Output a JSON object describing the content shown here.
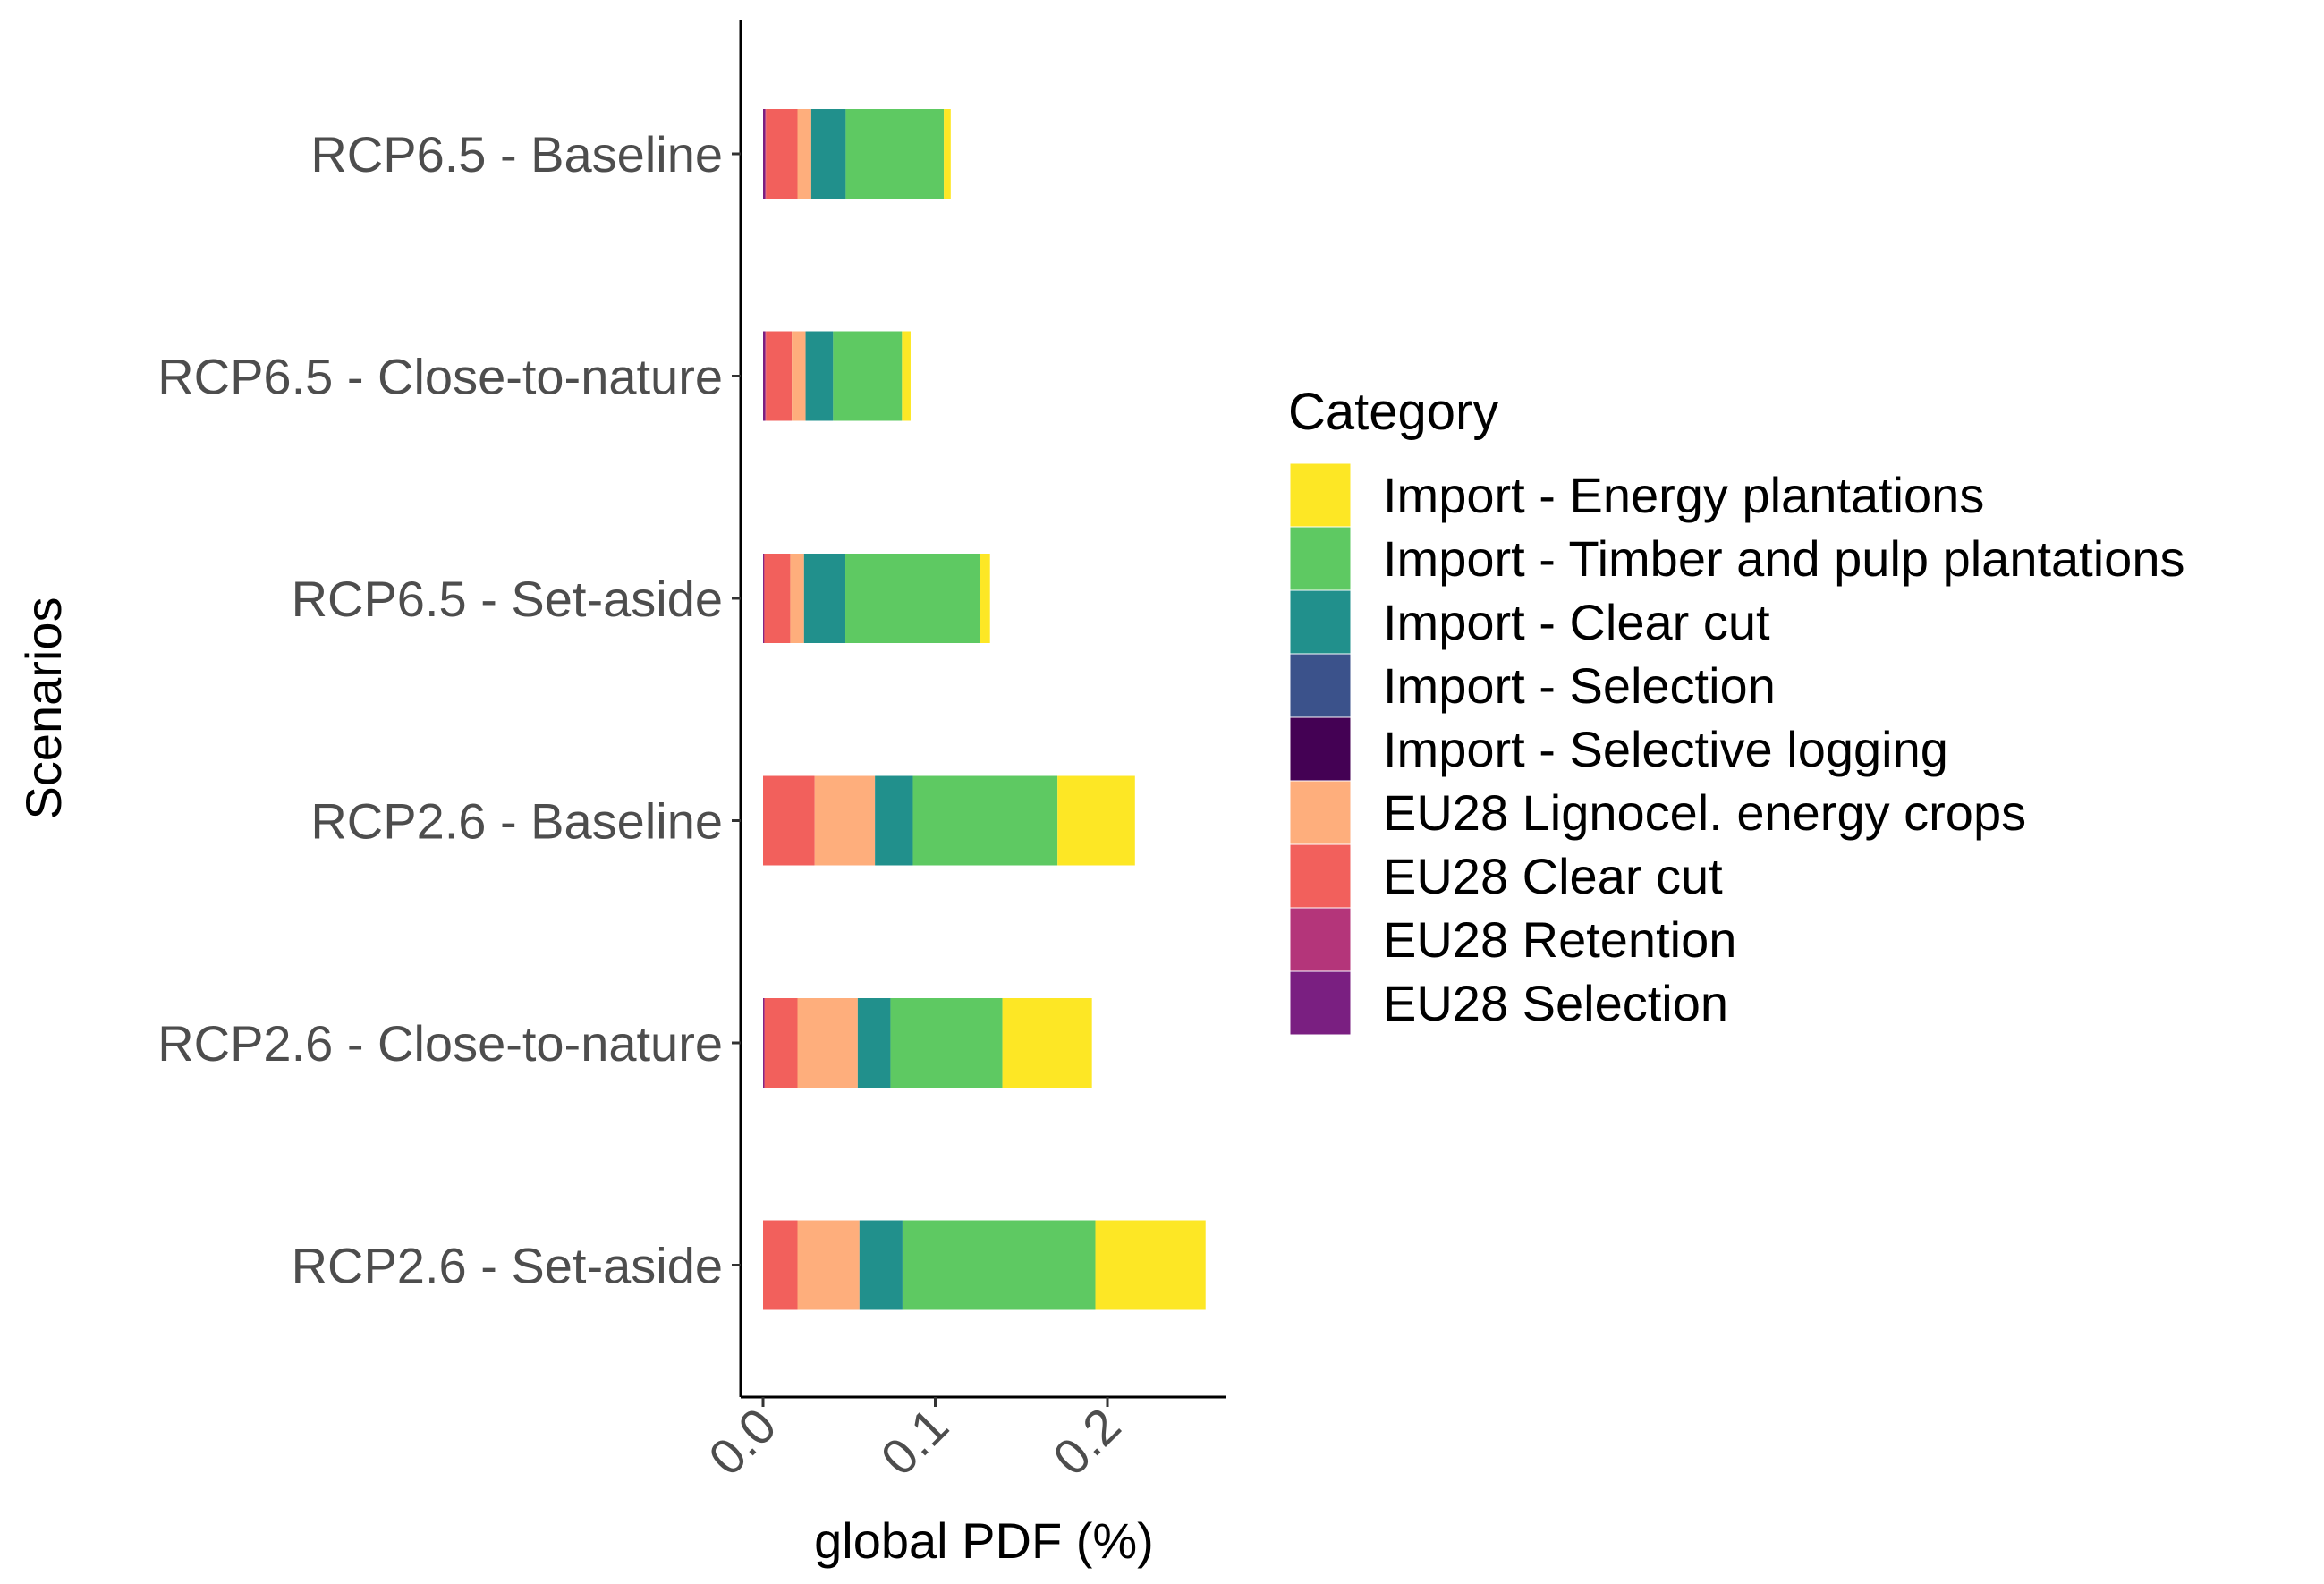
{
  "chart_data": {
    "type": "bar",
    "orientation": "horizontal",
    "stacked": true,
    "xlabel": "global PDF (%)",
    "ylabel": "Scenarios",
    "xlim": [
      -0.013,
      0.27
    ],
    "xticks": [
      0.0,
      0.1,
      0.2
    ],
    "xtick_labels": [
      "0.0",
      "0.1",
      "0.2"
    ],
    "grid": false,
    "legend": {
      "title": "Category",
      "position": "right"
    },
    "categories": [
      "RCP6.5 - Baseline",
      "RCP6.5 - Close-to-nature",
      "RCP6.5 - Set-aside",
      "RCP2.6 - Baseline",
      "RCP2.6 - Close-to-nature",
      "RCP2.6 - Set-aside"
    ],
    "series": [
      {
        "name": "EU28 Selection",
        "color": "#7A1F81",
        "values": [
          0.0012,
          0.0012,
          0.0005,
          0.0,
          0.0005,
          0.0
        ]
      },
      {
        "name": "EU28 Retention",
        "color": "#B4357A",
        "values": [
          0.0005,
          0.0005,
          0.0003,
          0.0,
          0.0005,
          0.0
        ]
      },
      {
        "name": "EU28 Clear cut",
        "color": "#F2605C",
        "values": [
          0.0183,
          0.015,
          0.015,
          0.03,
          0.019,
          0.02
        ]
      },
      {
        "name": "EU28 Lignocel. energy crops",
        "color": "#FEAE7C",
        "values": [
          0.008,
          0.008,
          0.008,
          0.035,
          0.035,
          0.036
        ]
      },
      {
        "name": "Import - Selective logging",
        "color": "#440154",
        "values": [
          0.0,
          0.0,
          0.0,
          0.0,
          0.0,
          0.0
        ]
      },
      {
        "name": "Import - Selection",
        "color": "#3B528B",
        "values": [
          0.0,
          0.0,
          0.0,
          0.0,
          0.0,
          0.0
        ]
      },
      {
        "name": "Import - Clear cut",
        "color": "#21908C",
        "values": [
          0.02,
          0.016,
          0.024,
          0.022,
          0.019,
          0.025
        ]
      },
      {
        "name": "Import - Timber and pulp plantations",
        "color": "#5EC962",
        "values": [
          0.057,
          0.04,
          0.078,
          0.084,
          0.065,
          0.112
        ]
      },
      {
        "name": "Import - Energy plantations",
        "color": "#FDE725",
        "values": [
          0.004,
          0.005,
          0.006,
          0.045,
          0.052,
          0.064
        ]
      }
    ]
  }
}
